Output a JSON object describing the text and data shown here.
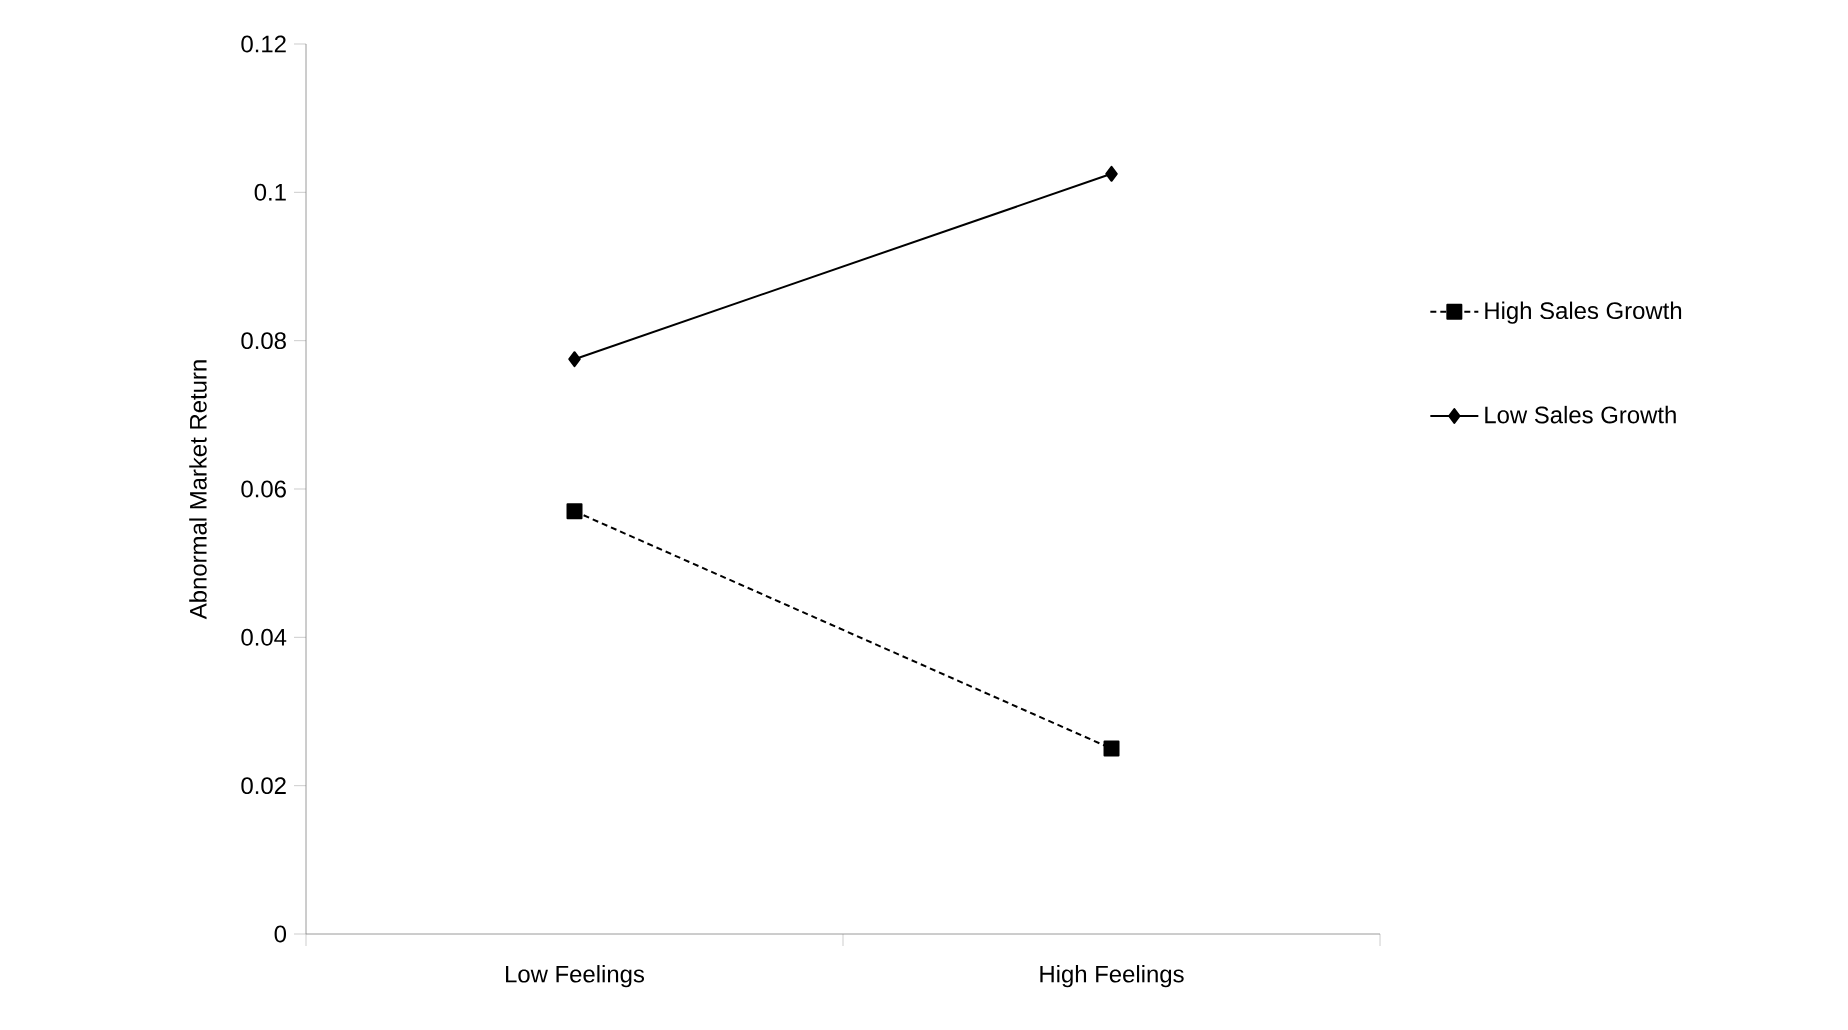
{
  "chart_data": {
    "type": "line",
    "ylabel": "Abnormal Market Return",
    "categories": [
      "Low Feelings",
      "High Feelings"
    ],
    "series": [
      {
        "name": "High Sales Growth",
        "color": "#000000",
        "values": [
          0.057,
          0.025
        ],
        "marker": "square",
        "line_style": "dashed"
      },
      {
        "name": "Low Sales Growth",
        "color": "#000000",
        "values": [
          0.0775,
          0.1025
        ],
        "marker": "diamond",
        "line_style": "solid"
      }
    ],
    "ylim": [
      0,
      0.12
    ],
    "yticks": [
      0,
      0.02,
      0.04,
      0.06,
      0.08,
      0.1,
      0.12
    ],
    "grid": false,
    "legend": "right"
  }
}
